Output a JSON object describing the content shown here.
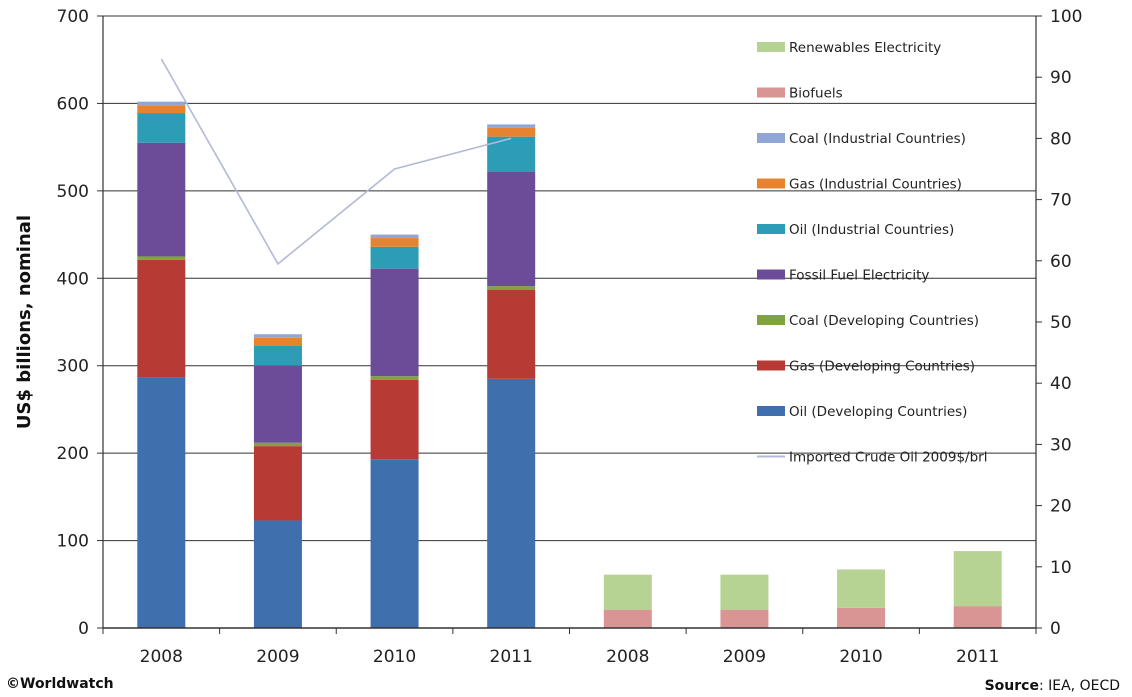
{
  "chart_data": {
    "type": "bar",
    "stacked": true,
    "categories": [
      "2008",
      "2009",
      "2010",
      "2011",
      "2008",
      "2009",
      "2010",
      "2011"
    ],
    "ylabel": "US$ billions, nominal",
    "ylim": [
      0,
      700
    ],
    "yticks": [
      0,
      100,
      200,
      300,
      400,
      500,
      600,
      700
    ],
    "y2lim": [
      0,
      100
    ],
    "y2ticks": [
      0,
      10,
      20,
      30,
      40,
      50,
      60,
      70,
      80,
      90,
      100
    ],
    "grid": true,
    "legend_position": "right",
    "series": [
      {
        "name": "Oil (Developing Countries)",
        "color": "#3f6fad",
        "values": [
          287,
          123,
          193,
          285,
          0,
          0,
          0,
          0
        ]
      },
      {
        "name": "Gas (Developing Countries)",
        "color": "#b73a35",
        "values": [
          134,
          85,
          91,
          102,
          0,
          0,
          0,
          0
        ]
      },
      {
        "name": "Coal (Developing Countries)",
        "color": "#7ea33f",
        "values": [
          4,
          4,
          4,
          4,
          0,
          0,
          0,
          0
        ]
      },
      {
        "name": "Fossil Fuel Electricity",
        "color": "#6c4c98",
        "values": [
          130,
          88,
          123,
          131,
          0,
          0,
          0,
          0
        ]
      },
      {
        "name": "Oil (Industrial Countries)",
        "color": "#2d9cb5",
        "values": [
          34,
          23,
          25,
          40,
          0,
          0,
          0,
          0
        ]
      },
      {
        "name": "Gas (Industrial Countries)",
        "color": "#e7832e",
        "values": [
          9,
          9,
          10,
          10,
          0,
          0,
          0,
          0
        ]
      },
      {
        "name": "Coal (Industrial Countries)",
        "color": "#8fa6d6",
        "values": [
          4,
          4,
          4,
          4,
          0,
          0,
          0,
          0
        ]
      },
      {
        "name": "Biofuels",
        "color": "#d99593",
        "values": [
          0,
          0,
          0,
          0,
          21,
          21,
          23,
          25
        ]
      },
      {
        "name": "Renewables Electricity",
        "color": "#b7d394",
        "values": [
          0,
          0,
          0,
          0,
          40,
          40,
          44,
          63
        ]
      }
    ],
    "line_series": {
      "name": "Imported Crude Oil 2009$/brl",
      "color": "#b3b9d6",
      "axis": "right",
      "points": [
        {
          "category_index": 0,
          "value": 93
        },
        {
          "category_index": 1,
          "value": 59.5
        },
        {
          "category_index": 2,
          "value": 75
        },
        {
          "category_index": 3,
          "value": 80
        }
      ]
    }
  },
  "footer": {
    "credit": "©Worldwatch",
    "source_label": "Source",
    "source_text": ": IEA, OECD"
  }
}
